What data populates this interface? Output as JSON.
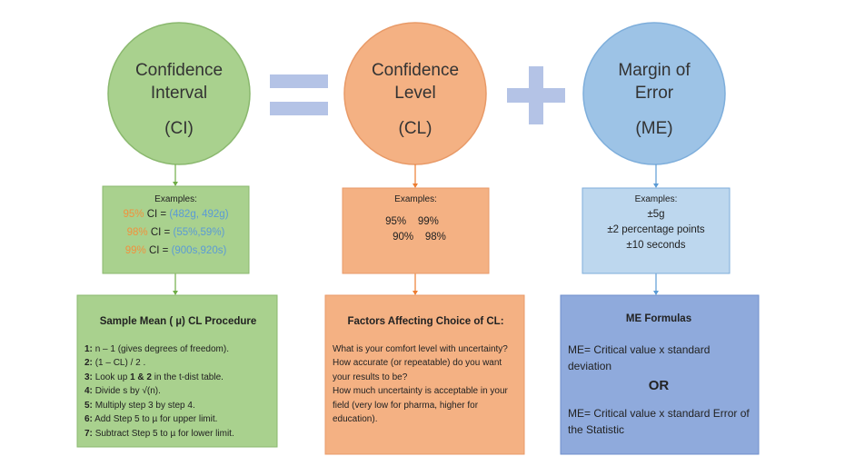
{
  "circles": [
    {
      "lines": [
        "Confidence",
        "Interval"
      ],
      "abbr": "(CI)"
    },
    {
      "lines": [
        "Confidence",
        "Level"
      ],
      "abbr": "(CL)"
    },
    {
      "lines": [
        "Margin of",
        "Error"
      ],
      "abbr": "(ME)"
    }
  ],
  "examples": {
    "ci": {
      "heading": "Examples:",
      "rows": [
        {
          "level": "95%",
          "label": "CI =",
          "range": "(482g, 492g)"
        },
        {
          "level": "98%",
          "label": "CI =",
          "range": "(55%,59%)"
        },
        {
          "level": "99%",
          "label": "CI =",
          "range": "(900s,920s)"
        }
      ]
    },
    "cl": {
      "heading": "Examples:",
      "rows": [
        [
          "95%",
          "99%"
        ],
        [
          "90%",
          "98%"
        ]
      ]
    },
    "me": {
      "heading": "Examples:",
      "rows": [
        "±5g",
        "±2 percentage points",
        "±10 seconds"
      ]
    }
  },
  "panels": {
    "procedure": {
      "title": "Sample Mean ( µ) CL Procedure",
      "steps": [
        {
          "num": "1:",
          "text": "n – 1 (gives degrees of freedom)."
        },
        {
          "num": "2:",
          "text": "(1 – CL) / 2 ."
        },
        {
          "num": "3:",
          "before": "Look up",
          "bold": "1 & 2",
          "after": "in the t-dist table."
        },
        {
          "num": "4:",
          "text": "Divide s by √(n)."
        },
        {
          "num": "5:",
          "text": "Multiply step 3 by step 4."
        },
        {
          "num": "6:",
          "text": "Add Step 5 to  µ for upper limit."
        },
        {
          "num": "7:",
          "text": "Subtract Step 5 to µ for lower limit."
        }
      ]
    },
    "factors": {
      "title": "Factors Affecting Choice of CL:",
      "items": [
        "What is your comfort level with uncertainty?",
        "How accurate (or repeatable) do you want your results to be?",
        "How much uncertainty is acceptable in your field (very low for pharma, higher for education)."
      ]
    },
    "formulas": {
      "title": "ME Formulas",
      "first": "ME= Critical value x standard deviation",
      "or": "OR",
      "second": "ME= Critical value x standard Error of the Statistic"
    }
  }
}
